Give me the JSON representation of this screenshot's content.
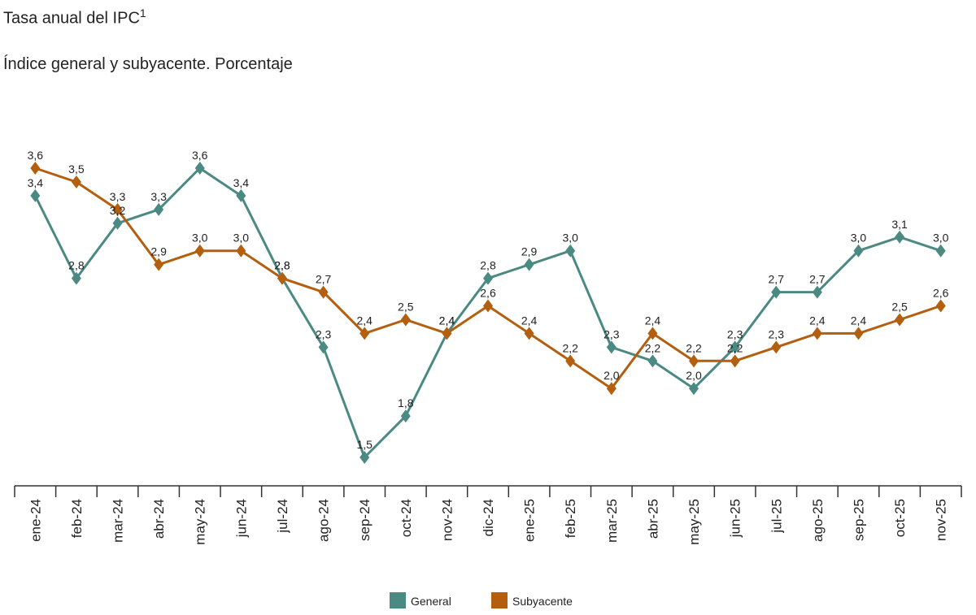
{
  "title": "Tasa anual del IPC",
  "title_superscript": "1",
  "subtitle": "Índice general y subyacente. Porcentaje",
  "colors": {
    "general": "#4a8a82",
    "subyacente": "#b35f0f",
    "axis": "#333333"
  },
  "chart_data": {
    "type": "line",
    "categories": [
      "ene-24",
      "feb-24",
      "mar-24",
      "abr-24",
      "may-24",
      "jun-24",
      "jul-24",
      "ago-24",
      "sep-24",
      "oct-24",
      "nov-24",
      "dic-24",
      "ene-25",
      "feb-25",
      "mar-25",
      "abr-25",
      "may-25",
      "jun-25",
      "jul-25",
      "ago-25",
      "sep-25",
      "oct-25",
      "nov-25"
    ],
    "series": [
      {
        "name": "General",
        "values": [
          3.4,
          2.8,
          3.2,
          3.3,
          3.6,
          3.4,
          2.8,
          2.3,
          1.5,
          1.8,
          2.4,
          2.8,
          2.9,
          3.0,
          2.3,
          2.2,
          2.0,
          2.3,
          2.7,
          2.7,
          3.0,
          3.1,
          3.0
        ]
      },
      {
        "name": "Subyacente",
        "values": [
          3.6,
          3.5,
          3.3,
          2.9,
          3.0,
          3.0,
          2.8,
          2.7,
          2.4,
          2.5,
          2.4,
          2.6,
          2.4,
          2.2,
          2.0,
          2.4,
          2.2,
          2.2,
          2.3,
          2.4,
          2.4,
          2.5,
          2.6
        ]
      }
    ],
    "data_labels": true,
    "grid": false,
    "legend_position": "bottom-center"
  }
}
